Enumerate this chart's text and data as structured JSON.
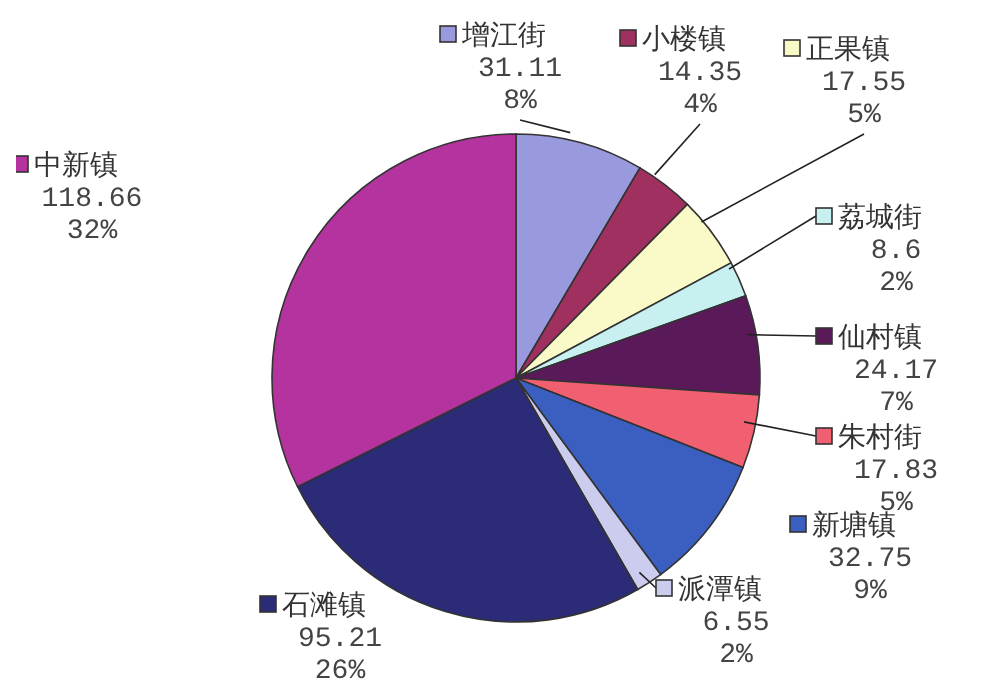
{
  "chart_data": {
    "type": "pie",
    "categories": [
      "增江街",
      "小楼镇",
      "正果镇",
      "荔城街",
      "仙村镇",
      "朱村街",
      "新塘镇",
      "派潭镇",
      "石滩镇",
      "中新镇"
    ],
    "values": [
      31.11,
      14.35,
      17.55,
      8.6,
      24.17,
      17.83,
      32.75,
      6.55,
      95.21,
      118.66
    ],
    "value_labels": [
      "31.11 8%",
      "14.35 4%",
      "17.55 5%",
      "8.6 2%",
      "24.17 7%",
      "17.83 5%",
      "32.75 9%",
      "6.55 2%",
      "95.21 26%",
      "118.66 32%"
    ],
    "colors": [
      "#9999dd",
      "#a0305f",
      "#fafac8",
      "#c8f0f0",
      "#5a1a5a",
      "#f06070",
      "#3a5fc0",
      "#ccccee",
      "#2b2b78",
      "#b5339f"
    ],
    "legend": "top left"
  }
}
